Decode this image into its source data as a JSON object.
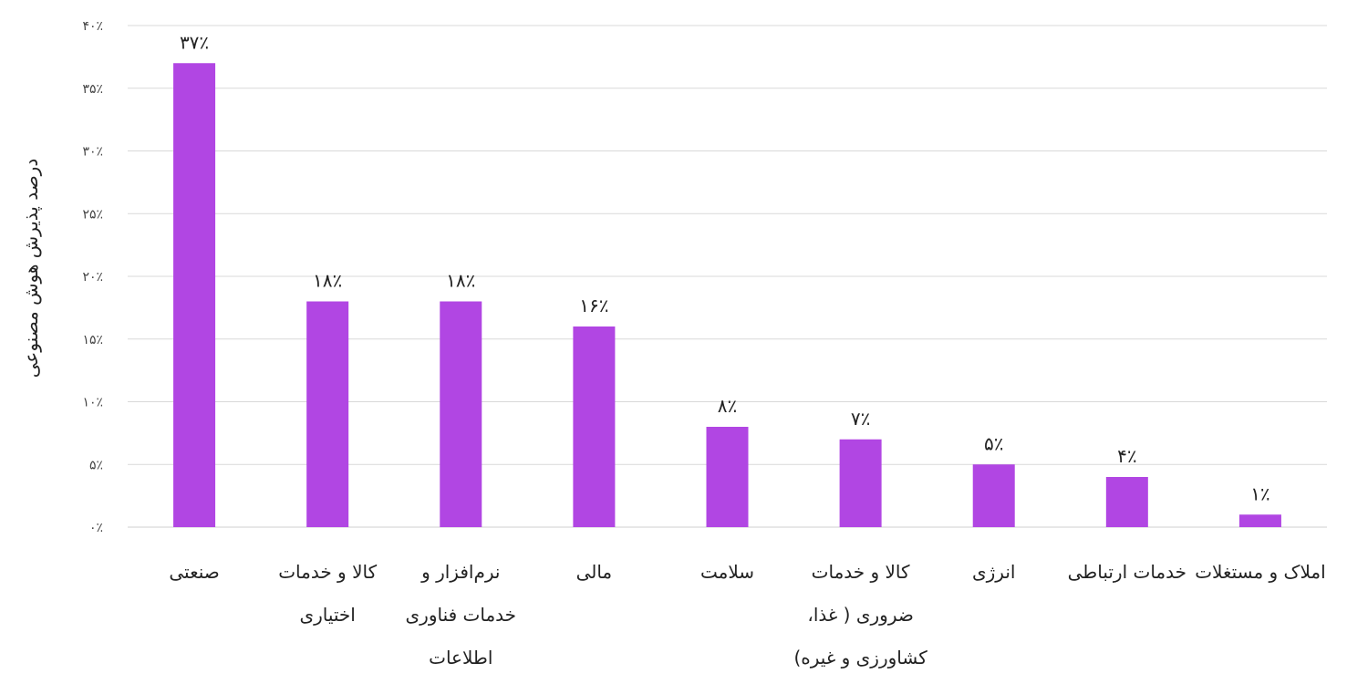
{
  "chart_data": {
    "type": "bar",
    "title": "",
    "xlabel": "",
    "ylabel": "درصد پذیرش هوش مصنوعی",
    "ylim": [
      0,
      40
    ],
    "y_ticks": [
      "۰٪",
      "۵٪",
      "۱۰٪",
      "۱۵٪",
      "۲۰٪",
      "۲۵٪",
      "۳۰٪",
      "۳۵٪",
      "۴۰٪"
    ],
    "categories": [
      "صنعتی",
      "کالا و خدمات اختیاری",
      "نرم‌افزار و خدمات فناوری اطلاعات",
      "مالی",
      "سلامت",
      "کالا و خدمات ضروری ( غذا، کشاورزی و غیره)",
      "انرژی",
      "خدمات ارتباطی",
      "املاک و مستغلات"
    ],
    "values": [
      37,
      18,
      18,
      16,
      8,
      7,
      5,
      4,
      1
    ],
    "data_labels": [
      "۳۷٪",
      "۱۸٪",
      "۱۸٪",
      "۱۶٪",
      "۸٪",
      "۷٪",
      "۵٪",
      "۴٪",
      "۱٪"
    ],
    "bar_color": "#b146e3",
    "grid": true,
    "legend": "none"
  }
}
